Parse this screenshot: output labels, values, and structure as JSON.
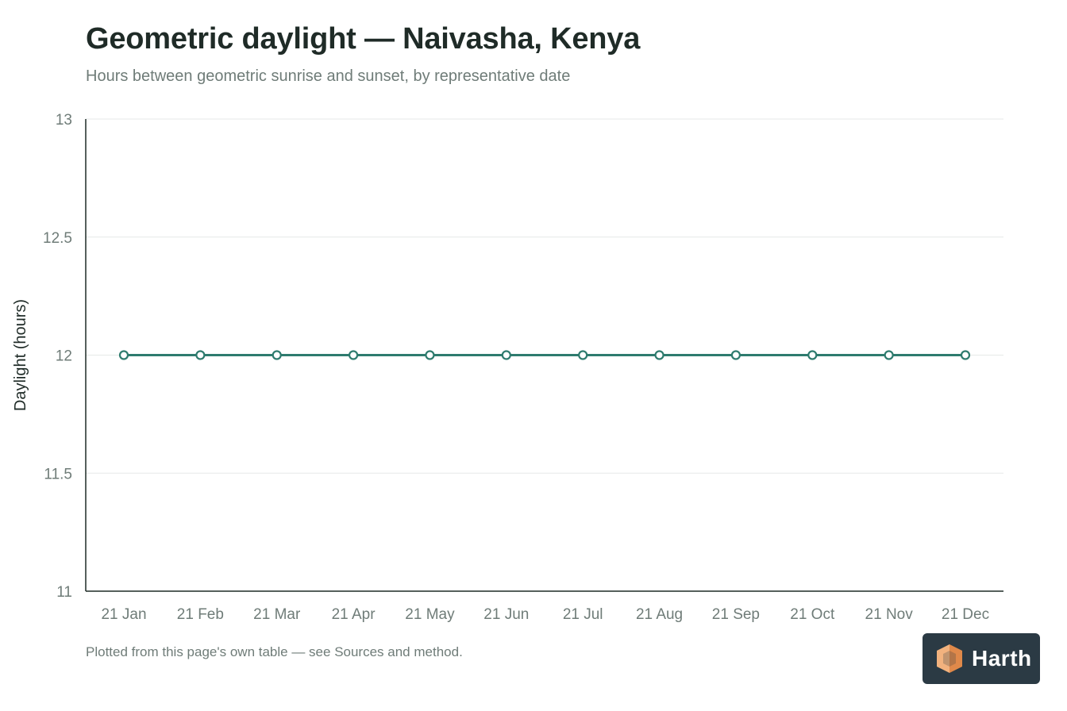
{
  "header": {
    "title": "Geometric daylight — Naivasha, Kenya",
    "subtitle": "Hours between geometric sunrise and sunset, by representative date"
  },
  "footer": {
    "note": "Plotted from this page's own table — see Sources and method."
  },
  "logo": {
    "wordmark": "Harth",
    "icon": "cube-logo-icon",
    "colors": {
      "background": "#2b3a44",
      "cube_light": "#f2b27e",
      "cube_dark": "#e0894a"
    }
  },
  "chart_data": {
    "type": "line",
    "categories": [
      "21 Jan",
      "21 Feb",
      "21 Mar",
      "21 Apr",
      "21 May",
      "21 Jun",
      "21 Jul",
      "21 Aug",
      "21 Sep",
      "21 Oct",
      "21 Nov",
      "21 Dec"
    ],
    "series": [
      {
        "values": [
          12,
          12,
          12,
          12,
          12,
          12,
          12,
          12,
          12,
          12,
          12,
          12
        ],
        "color": "#2e7b6e",
        "markers": "hollow-circle"
      }
    ],
    "title": "Geometric daylight — Naivasha, Kenya",
    "subtitle": "Hours between geometric sunrise and sunset, by representative date",
    "xlabel": "",
    "ylabel": "Daylight (hours)",
    "ylim": [
      11,
      13
    ],
    "yticks": [
      11,
      11.5,
      12,
      12.5,
      13
    ],
    "ytick_labels": [
      "11",
      "11.5",
      "12",
      "12.5",
      "13"
    ],
    "grid": "horizontal",
    "legend": "none"
  }
}
